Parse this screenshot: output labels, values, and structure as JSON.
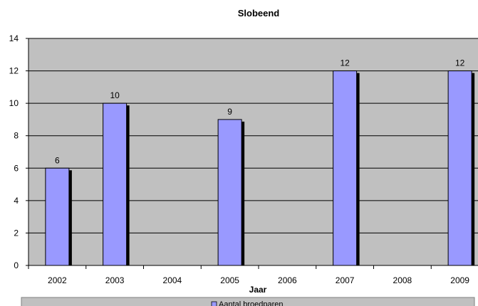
{
  "chart_data": {
    "type": "bar",
    "title": "Slobeend",
    "xlabel": "Jaar",
    "ylabel": "",
    "categories": [
      "2002",
      "2003",
      "2004",
      "2005",
      "2006",
      "2007",
      "2008",
      "2009"
    ],
    "series": [
      {
        "name": "Aantal broedparen",
        "values": [
          6,
          10,
          null,
          9,
          null,
          12,
          null,
          12
        ]
      }
    ],
    "data_labels": [
      "6",
      "10",
      "",
      "9",
      "",
      "12",
      "",
      "12"
    ],
    "ylim": [
      0,
      14
    ],
    "yticks": [
      0,
      2,
      4,
      6,
      8,
      10,
      12,
      14
    ],
    "grid": true,
    "legend_position": "bottom",
    "colors": {
      "bar_fill": "#9999ff",
      "bar_shadow": "#000000",
      "plot_background": "#c0c0c0",
      "gridline": "#000000"
    }
  }
}
